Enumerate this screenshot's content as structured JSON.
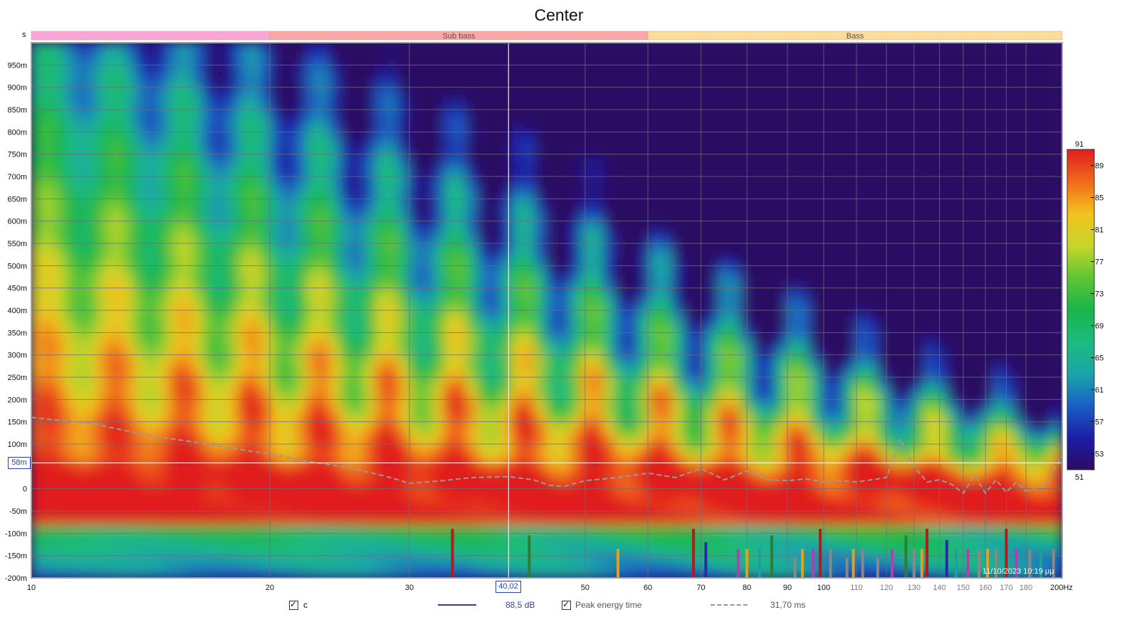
{
  "chart_data": {
    "type": "heatmap",
    "title": "Center",
    "y_unit": "s",
    "x_unit": "Hz",
    "x_scale": "log",
    "x_range": [
      10,
      200
    ],
    "y_range": [
      -0.2,
      1.0
    ],
    "x_ticks": [
      {
        "v": 10,
        "label": "10"
      },
      {
        "v": 20,
        "label": "20"
      },
      {
        "v": 30,
        "label": "30"
      },
      {
        "v": 40,
        "label": ""
      },
      {
        "v": 50,
        "label": "50"
      },
      {
        "v": 60,
        "label": "60"
      },
      {
        "v": 70,
        "label": "70"
      },
      {
        "v": 80,
        "label": "80"
      },
      {
        "v": 90,
        "label": "90"
      },
      {
        "v": 100,
        "label": "100"
      },
      {
        "v": 110,
        "label": "110"
      },
      {
        "v": 120,
        "label": "120"
      },
      {
        "v": 130,
        "label": "130"
      },
      {
        "v": 140,
        "label": "140"
      },
      {
        "v": 150,
        "label": "150"
      },
      {
        "v": 160,
        "label": "160"
      },
      {
        "v": 170,
        "label": "170"
      },
      {
        "v": 180,
        "label": "180"
      },
      {
        "v": 200,
        "label": "200Hz"
      }
    ],
    "y_ticks": [
      {
        "v": 0.95,
        "label": "950m"
      },
      {
        "v": 0.9,
        "label": "900m"
      },
      {
        "v": 0.85,
        "label": "850m"
      },
      {
        "v": 0.8,
        "label": "800m"
      },
      {
        "v": 0.75,
        "label": "750m"
      },
      {
        "v": 0.7,
        "label": "700m"
      },
      {
        "v": 0.65,
        "label": "650m"
      },
      {
        "v": 0.6,
        "label": "600m"
      },
      {
        "v": 0.55,
        "label": "550m"
      },
      {
        "v": 0.5,
        "label": "500m"
      },
      {
        "v": 0.45,
        "label": "450m"
      },
      {
        "v": 0.4,
        "label": "400m"
      },
      {
        "v": 0.35,
        "label": "350m"
      },
      {
        "v": 0.3,
        "label": "300m"
      },
      {
        "v": 0.25,
        "label": "250m"
      },
      {
        "v": 0.2,
        "label": "200m"
      },
      {
        "v": 0.15,
        "label": "150m"
      },
      {
        "v": 0.1,
        "label": "100m"
      },
      {
        "v": 0.05,
        "label": ""
      },
      {
        "v": 0,
        "label": "0"
      },
      {
        "v": -0.05,
        "label": "-50m"
      },
      {
        "v": -0.1,
        "label": "-100m"
      },
      {
        "v": -0.15,
        "label": "-150m"
      },
      {
        "v": -0.2,
        "label": "-200m"
      }
    ],
    "bands": [
      {
        "label": "",
        "from": 10,
        "to": 20,
        "color": "#f9a6d6"
      },
      {
        "label": "Sub bass",
        "from": 20,
        "to": 60,
        "color": "#f8a8a6"
      },
      {
        "label": "Bass",
        "from": 60,
        "to": 200,
        "color": "#fbdc9c"
      }
    ],
    "colorscale": {
      "min": 51,
      "max": 91,
      "ticks": [
        {
          "v": 91,
          "label": "91"
        },
        {
          "v": 89,
          "label": "89"
        },
        {
          "v": 85,
          "label": "85"
        },
        {
          "v": 81,
          "label": "81"
        },
        {
          "v": 77,
          "label": "77"
        },
        {
          "v": 73,
          "label": "73"
        },
        {
          "v": 69,
          "label": "69"
        },
        {
          "v": 65,
          "label": "65"
        },
        {
          "v": 61,
          "label": "61"
        },
        {
          "v": 57,
          "label": "57"
        },
        {
          "v": 53,
          "label": "53"
        },
        {
          "v": 51,
          "label": "51"
        }
      ],
      "stops": [
        {
          "v": 51,
          "color": "#2b0a63"
        },
        {
          "v": 55,
          "color": "#1c1ea8"
        },
        {
          "v": 59,
          "color": "#1a5fc4"
        },
        {
          "v": 63,
          "color": "#1ba5a8"
        },
        {
          "v": 67,
          "color": "#1dbb80"
        },
        {
          "v": 71,
          "color": "#19b54a"
        },
        {
          "v": 75,
          "color": "#5ec535"
        },
        {
          "v": 79,
          "color": "#c8d62a"
        },
        {
          "v": 83,
          "color": "#f2c21d"
        },
        {
          "v": 87,
          "color": "#f06a1c"
        },
        {
          "v": 91,
          "color": "#e01d1d"
        }
      ]
    },
    "cursor": {
      "x": 40.02,
      "x_label": "40,02",
      "y": 0.058,
      "y_label": "58m"
    },
    "peak_energy_time": [
      [
        10,
        0.16
      ],
      [
        12,
        0.145
      ],
      [
        14,
        0.12
      ],
      [
        16,
        0.105
      ],
      [
        18,
        0.09
      ],
      [
        20,
        0.078
      ],
      [
        22,
        0.063
      ],
      [
        25,
        0.048
      ],
      [
        28,
        0.028
      ],
      [
        30,
        0.012
      ],
      [
        33,
        0.018
      ],
      [
        36,
        0.025
      ],
      [
        40,
        0.027
      ],
      [
        43,
        0.02
      ],
      [
        45,
        0.008
      ],
      [
        47,
        0.005
      ],
      [
        50,
        0.018
      ],
      [
        55,
        0.025
      ],
      [
        60,
        0.035
      ],
      [
        65,
        0.025
      ],
      [
        70,
        0.045
      ],
      [
        75,
        0.02
      ],
      [
        80,
        0.04
      ],
      [
        85,
        0.02
      ],
      [
        90,
        0.018
      ],
      [
        95,
        0.022
      ],
      [
        100,
        0.015
      ],
      [
        105,
        0.018
      ],
      [
        110,
        0.015
      ],
      [
        115,
        0.02
      ],
      [
        120,
        0.025
      ],
      [
        125,
        0.11
      ],
      [
        130,
        0.05
      ],
      [
        135,
        0.015
      ],
      [
        140,
        0.02
      ],
      [
        145,
        0.01
      ],
      [
        150,
        -0.01
      ],
      [
        155,
        0.03
      ],
      [
        160,
        -0.01
      ],
      [
        165,
        0.02
      ],
      [
        170,
        -0.008
      ],
      [
        175,
        0.015
      ],
      [
        180,
        -0.005
      ],
      [
        190,
        0.005
      ],
      [
        200,
        0.075
      ]
    ],
    "spectrum_bars": [
      {
        "x": 34,
        "h": 0.11,
        "color": "#b01c1c"
      },
      {
        "x": 42.5,
        "h": 0.095,
        "color": "#2e7d32"
      },
      {
        "x": 55,
        "h": 0.065,
        "color": "#e0a020"
      },
      {
        "x": 68.5,
        "h": 0.11,
        "color": "#b01c1c"
      },
      {
        "x": 71,
        "h": 0.08,
        "color": "#2a2aa8"
      },
      {
        "x": 78,
        "h": 0.065,
        "color": "#b040b0"
      },
      {
        "x": 80,
        "h": 0.065,
        "color": "#e0a020"
      },
      {
        "x": 83,
        "h": 0.065,
        "color": "#1aa0a0"
      },
      {
        "x": 86,
        "h": 0.095,
        "color": "#2e7d32"
      },
      {
        "x": 92,
        "h": 0.045,
        "color": "#888888"
      },
      {
        "x": 94,
        "h": 0.065,
        "color": "#e0a020"
      },
      {
        "x": 97,
        "h": 0.065,
        "color": "#b040b0"
      },
      {
        "x": 99,
        "h": 0.11,
        "color": "#b01c1c"
      },
      {
        "x": 102,
        "h": 0.065,
        "color": "#888888"
      },
      {
        "x": 107,
        "h": 0.045,
        "color": "#888888"
      },
      {
        "x": 109,
        "h": 0.065,
        "color": "#e0a020"
      },
      {
        "x": 112,
        "h": 0.065,
        "color": "#888888"
      },
      {
        "x": 117,
        "h": 0.045,
        "color": "#888888"
      },
      {
        "x": 122,
        "h": 0.065,
        "color": "#b040b0"
      },
      {
        "x": 127,
        "h": 0.095,
        "color": "#2e7d32"
      },
      {
        "x": 130,
        "h": 0.065,
        "color": "#888888"
      },
      {
        "x": 133,
        "h": 0.065,
        "color": "#e0a020"
      },
      {
        "x": 135,
        "h": 0.11,
        "color": "#b01c1c"
      },
      {
        "x": 143,
        "h": 0.085,
        "color": "#2a2aa8"
      },
      {
        "x": 147,
        "h": 0.065,
        "color": "#1aa0a0"
      },
      {
        "x": 152,
        "h": 0.065,
        "color": "#b040b0"
      },
      {
        "x": 157,
        "h": 0.065,
        "color": "#888888"
      },
      {
        "x": 161,
        "h": 0.065,
        "color": "#e0a020"
      },
      {
        "x": 165,
        "h": 0.065,
        "color": "#888888"
      },
      {
        "x": 170,
        "h": 0.11,
        "color": "#b01c1c"
      },
      {
        "x": 175,
        "h": 0.065,
        "color": "#b040b0"
      },
      {
        "x": 182,
        "h": 0.065,
        "color": "#888888"
      },
      {
        "x": 188,
        "h": 0.065,
        "color": "#1aa0a0"
      },
      {
        "x": 195,
        "h": 0.065,
        "color": "#888888"
      }
    ],
    "timestamp": "11/10/2023 10:19 μμ"
  },
  "legend": {
    "trace_name": "c",
    "trace_value": "88,5 dB",
    "trace_color": "#2a3fb0",
    "peak_label": "Peak energy time",
    "peak_value": "31,70 ms",
    "peak_color": "#999999"
  }
}
